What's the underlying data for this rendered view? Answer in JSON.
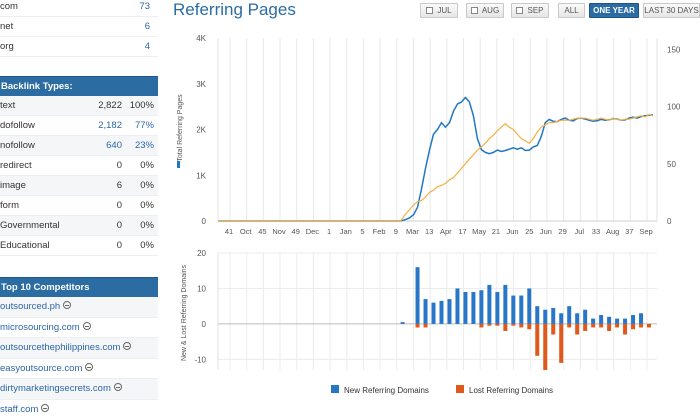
{
  "tlds": [
    {
      "label": "com",
      "value": "73"
    },
    {
      "label": "net",
      "value": "6"
    },
    {
      "label": "org",
      "value": "4"
    }
  ],
  "backlink_types": {
    "title": "Backlink Types:",
    "rows": [
      {
        "label": "text",
        "count": "2,822",
        "percent": "100%",
        "link": false
      },
      {
        "label": "dofollow",
        "count": "2,182",
        "percent": "77%",
        "link": true
      },
      {
        "label": "nofollow",
        "count": "640",
        "percent": "23%",
        "link": true
      },
      {
        "label": "redirect",
        "count": "0",
        "percent": "0%",
        "link": false
      },
      {
        "label": "image",
        "count": "6",
        "percent": "0%",
        "link": false
      },
      {
        "label": "form",
        "count": "0",
        "percent": "0%",
        "link": false
      },
      {
        "label": "Governmental",
        "count": "0",
        "percent": "0%",
        "link": false
      },
      {
        "label": "Educational",
        "count": "0",
        "percent": "0%",
        "link": false
      }
    ]
  },
  "competitors": {
    "title": "Top 10 Competitors",
    "items": [
      "outsourced.ph",
      "microsourcing.com",
      "outsourcethephilippines.com",
      "easyoutsource.com",
      "dirtymarketingsecrets.com",
      "staff.com"
    ]
  },
  "header": {
    "title": "Referring Pages",
    "filters": [
      {
        "label": "JUL",
        "checkbox": true,
        "active": false
      },
      {
        "label": "AUG",
        "checkbox": true,
        "active": false
      },
      {
        "label": "SEP",
        "checkbox": true,
        "active": false
      },
      {
        "label": "ALL",
        "checkbox": false,
        "active": false
      },
      {
        "label": "ONE YEAR",
        "checkbox": false,
        "active": true
      },
      {
        "label": "LAST 30 DAYS",
        "checkbox": false,
        "active": false
      }
    ]
  },
  "colors": {
    "blue": "#1f77c4",
    "orange": "#f5b041",
    "new_bar": "#2876c8",
    "lost_bar": "#e0581a"
  },
  "chart_data": [
    {
      "type": "line",
      "ylabel": "Total Referring Pages",
      "y_ticks": [
        "0",
        "1K",
        "2K",
        "3K",
        "4K"
      ],
      "y_right_ticks": [
        "0",
        "50",
        "100",
        "150"
      ],
      "ylim": [
        0,
        4000
      ],
      "y_right_lim": [
        0,
        160
      ],
      "x_tick_labels": [
        "41",
        "Oct",
        "45",
        "Nov",
        "49",
        "Dec",
        "1",
        "Jan",
        "5",
        "Feb",
        "9",
        "Mar",
        "13",
        "Apr",
        "17",
        "May",
        "21",
        "Jun",
        "25",
        "Jun",
        "29",
        "Jul",
        "33",
        "Aug",
        "37",
        "Sep"
      ],
      "series": [
        {
          "axis": "left",
          "x": [
            0,
            18.3,
            18.8,
            19.2,
            19.6,
            20.0,
            20.4,
            20.8,
            21.2,
            21.6,
            22.0,
            22.4,
            22.8,
            23.2,
            23.6,
            24.0,
            24.4,
            24.8,
            25.2,
            25.6,
            26.0,
            26.4,
            26.8,
            27.2,
            27.6,
            28.0,
            28.4,
            28.8,
            29.2,
            29.6,
            30.0,
            30.4,
            30.8,
            31.2,
            31.6,
            32.0,
            32.4,
            32.8,
            33.2,
            33.6,
            34.0,
            34.4,
            34.8,
            35.2,
            35.6,
            36.0,
            36.4,
            36.8,
            37.2,
            37.6,
            38.0,
            38.4,
            38.8,
            39.2,
            39.6,
            40.0,
            40.4,
            40.8,
            41.2,
            41.6,
            42.0,
            42.4,
            42.8,
            43.2,
            43.6
          ],
          "y": [
            0,
            0,
            30,
            70,
            140,
            300,
            700,
            1150,
            1550,
            1900,
            2000,
            2150,
            2050,
            2150,
            2400,
            2560,
            2600,
            2700,
            2600,
            2300,
            1800,
            1560,
            1500,
            1470,
            1500,
            1550,
            1520,
            1540,
            1570,
            1600,
            1570,
            1600,
            1540,
            1550,
            1620,
            1650,
            1850,
            2150,
            2220,
            2180,
            2170,
            2220,
            2250,
            2200,
            2190,
            2240,
            2250,
            2230,
            2200,
            2180,
            2190,
            2220,
            2200,
            2210,
            2240,
            2230,
            2200,
            2210,
            2250,
            2270,
            2250,
            2280,
            2300,
            2310,
            2320
          ]
        },
        {
          "axis": "right",
          "x": [
            0,
            18.3,
            18.8,
            19.2,
            19.6,
            20.0,
            20.4,
            20.8,
            21.2,
            21.6,
            22.0,
            22.4,
            22.8,
            23.2,
            23.6,
            24.0,
            24.4,
            24.8,
            25.2,
            25.6,
            26.0,
            26.4,
            26.8,
            27.2,
            27.6,
            28.0,
            28.4,
            28.8,
            29.2,
            29.6,
            30.0,
            30.4,
            30.8,
            31.2,
            31.6,
            32.0,
            32.4,
            32.8,
            33.2,
            33.6,
            34.0,
            34.4,
            34.8,
            35.2,
            35.6,
            36.0,
            36.4,
            36.8,
            37.2,
            37.6,
            38.0,
            38.4,
            38.8,
            39.2,
            39.6,
            40.0,
            40.4,
            40.8,
            41.2,
            41.6,
            42.0,
            42.4,
            42.8,
            43.2,
            43.6
          ],
          "y": [
            0,
            0,
            6,
            10,
            14,
            17,
            18,
            21,
            25,
            27,
            30,
            31,
            33,
            36,
            38,
            42,
            46,
            50,
            54,
            58,
            62,
            65,
            68,
            72,
            75,
            79,
            82,
            85,
            82,
            80,
            76,
            72,
            70,
            68,
            72,
            78,
            82,
            84,
            86,
            86,
            87,
            88,
            88,
            88,
            89,
            90,
            90,
            90,
            89,
            88,
            89,
            90,
            89,
            88,
            90,
            89,
            88,
            89,
            89,
            90,
            91,
            92,
            91,
            93,
            92
          ]
        }
      ]
    },
    {
      "type": "bar",
      "ylabel": "New & Lost Referring Domains",
      "y_ticks": [
        "-10",
        "0",
        "10",
        "20"
      ],
      "ylim": [
        -13,
        20
      ],
      "x_range": [
        0,
        44
      ],
      "series": [
        {
          "name": "New Referring Domains",
          "x": [
            18.5,
            20,
            20.8,
            21.6,
            22.4,
            23.2,
            24.0,
            24.8,
            25.6,
            26.4,
            27.2,
            28.0,
            28.8,
            29.6,
            30.4,
            31.2,
            32.0,
            32.8,
            33.6,
            34.4,
            35.2,
            36.0,
            36.8,
            37.6,
            38.4,
            39.2,
            40.0,
            40.8,
            41.6,
            42.4
          ],
          "values": [
            0.5,
            16,
            7,
            6,
            6.5,
            7,
            10,
            9,
            9,
            9.5,
            11,
            9,
            11,
            8,
            8,
            10,
            5,
            4,
            4.5,
            3,
            5,
            3,
            4,
            1.5,
            2.5,
            2,
            1.5,
            1.5,
            2.5,
            3
          ]
        },
        {
          "name": "Lost Referring Domains",
          "x": [
            20,
            20.8,
            26.4,
            27.2,
            28.0,
            28.8,
            29.6,
            30.4,
            31.2,
            32.0,
            32.8,
            33.6,
            34.4,
            35.2,
            36.0,
            36.8,
            37.6,
            38.4,
            39.2,
            40.0,
            40.8,
            41.6,
            42.4,
            43.2
          ],
          "values": [
            -1,
            -1,
            -1,
            -0.5,
            -0.5,
            -2,
            -0.5,
            -1,
            -1.5,
            -9,
            -13,
            -3,
            -11,
            -1,
            -3,
            -2,
            -1,
            -1,
            -2,
            -1,
            -3,
            -1.5,
            -1,
            -1
          ]
        }
      ],
      "legend": [
        "New Referring Domains",
        "Lost Referring Domains"
      ]
    }
  ]
}
